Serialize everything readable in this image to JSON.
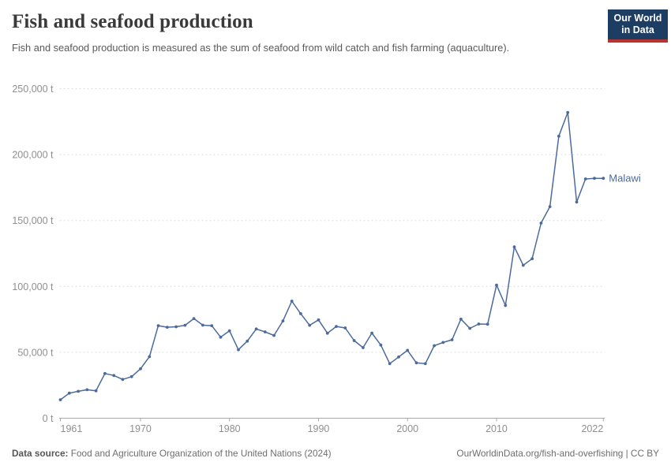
{
  "header": {
    "title": "Fish and seafood production",
    "subtitle": "Fish and seafood production is measured as the sum of seafood from wild catch and fish farming (aquaculture).",
    "logo_line1": "Our World",
    "logo_line2": "in Data"
  },
  "chart_data": {
    "type": "line",
    "title": "Fish and seafood production",
    "unit": "tonnes",
    "xlim": [
      1961,
      2022
    ],
    "ylim": [
      0,
      250000
    ],
    "grid": "horizontal-dashed",
    "legend_position": "end-of-line-label",
    "x_ticks": [
      1961,
      1970,
      1980,
      1990,
      2000,
      2010,
      2022
    ],
    "x_tick_labels": [
      "1961",
      "1970",
      "1980",
      "1990",
      "2000",
      "2010",
      "2022"
    ],
    "y_ticks": [
      0,
      50000,
      100000,
      150000,
      200000,
      250000
    ],
    "y_tick_labels": [
      "0 t",
      "50,000 t",
      "100,000 t",
      "150,000 t",
      "200,000 t",
      "250,000 t"
    ],
    "series": [
      {
        "name": "Malawi",
        "color": "#4C6A9C",
        "x": [
          1961,
          1962,
          1963,
          1964,
          1965,
          1966,
          1967,
          1968,
          1969,
          1970,
          1971,
          1972,
          1973,
          1974,
          1975,
          1976,
          1977,
          1978,
          1979,
          1980,
          1981,
          1982,
          1983,
          1984,
          1985,
          1986,
          1987,
          1988,
          1989,
          1990,
          1991,
          1992,
          1993,
          1994,
          1995,
          1996,
          1997,
          1998,
          1999,
          2000,
          2001,
          2002,
          2003,
          2004,
          2005,
          2006,
          2007,
          2008,
          2009,
          2010,
          2011,
          2012,
          2013,
          2014,
          2015,
          2016,
          2017,
          2018,
          2019,
          2020,
          2021,
          2022
        ],
        "values": [
          14000,
          19000,
          20400,
          21600,
          20800,
          33900,
          32400,
          29400,
          31500,
          37500,
          46700,
          70200,
          69000,
          69400,
          70500,
          75600,
          70600,
          70200,
          61500,
          66300,
          52000,
          58500,
          67700,
          65500,
          62800,
          73800,
          88800,
          79300,
          70500,
          74600,
          64500,
          69600,
          68500,
          58900,
          53500,
          64600,
          55500,
          41400,
          46500,
          51500,
          42000,
          41400,
          55000,
          57500,
          59500,
          75200,
          68200,
          71500,
          71300,
          101000,
          85500,
          130000,
          116000,
          121000,
          148000,
          160500,
          214000,
          232000,
          164000,
          181500,
          182000,
          182000
        ]
      }
    ]
  },
  "footer": {
    "source_label": "Data source:",
    "source_text": " Food and Agriculture Organization of the United Nations (2024)",
    "link_text": "OurWorldinData.org/fish-and-overfishing | CC BY"
  },
  "colors": {
    "line": "#4C6A9C",
    "grid": "#dedede",
    "axis": "#a8a8a8",
    "tick_label": "#8f8f8f",
    "logo_bg": "#1d3d63",
    "logo_bar": "#b8352f"
  }
}
